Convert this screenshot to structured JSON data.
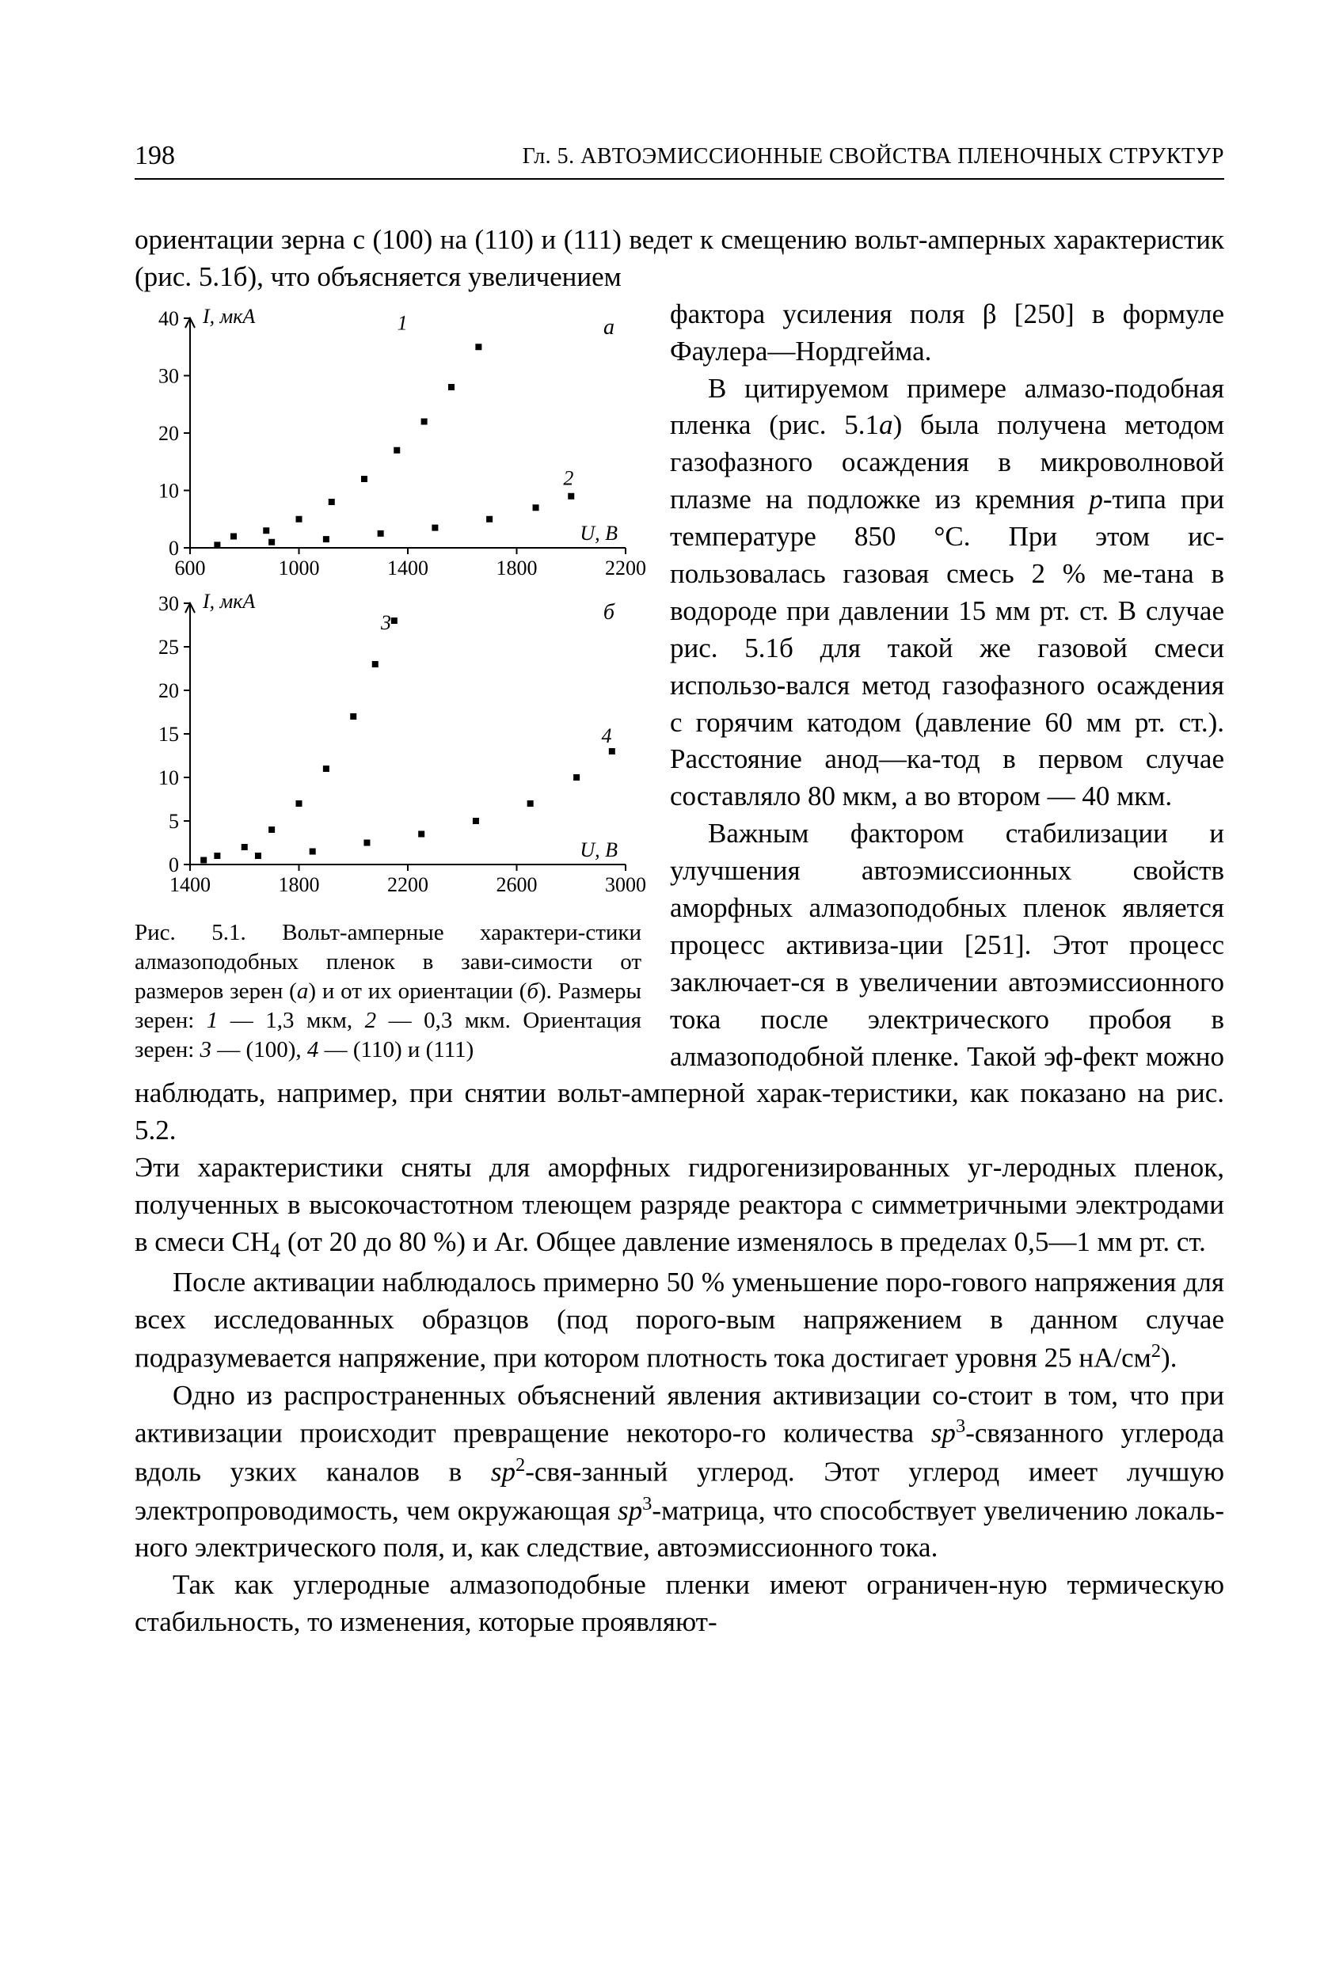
{
  "page_number": "198",
  "running_head": "Гл. 5. АВТОЭМИССИОННЫЕ СВОЙСТВА ПЛЕНОЧНЫХ СТРУКТУР",
  "top_para": "ориентации зерна с (100) на (110) и (111) ведет к смещению вольт-амперных характеристик (рис. 5.1б), что объясняется увеличением",
  "right_col": {
    "p1a": "фактора усиления поля β [250] в формуле Фаулера—Нордгейма.",
    "p1b_pre": "В цитируемом примере алмазо-подобная пленка (рис. 5.1",
    "p1b_post": ") была получена методом газофазного осаждения в микроволновой плазме на подложке из кремния ",
    "p1b_tail": "-типа при температуре 850 °C. При этом ис-пользовалась газовая смесь 2 % ме-тана в водороде при давлении 15 мм рт. ст. В случае рис. 5.1б для такой же газовой смеси использо-вался метод газофазного осаждения с горячим катодом (давление 60 мм рт. ст.). Расстояние анод—ка-тод в первом случае составляло 80 мкм, а во втором — 40 мкм.",
    "p2": "Важным фактором стабилизации и улучшения автоэмиссионных свойств аморфных алмазоподобных пленок является процесс активиза-ции [251]. Этот процесс заключает-ся в увеличении автоэмиссионного тока после электрического пробоя в алмазоподобной пленке. Такой эф-фект можно наблюдать, например, при снятии вольт-амперной харак-теристики, как показано на рис. 5.2."
  },
  "full_width": {
    "p3_pre": "Эти характеристики сняты для аморфных гидрогенизированных уг-леродных пленок, полученных в высокочастотном тлеющем разряде реактора с симметричными электродами в смеси CH",
    "p3_post": " (от 20 до 80 %) и Ar. Общее давление изменялось в пределах 0,5—1 мм рт. ст.",
    "p4_pre": "После активации наблюдалось примерно 50 % уменьшение поро-гового напряжения для всех исследованных образцов (под порого-вым напряжением в данном случае подразумевается напряжение, при котором плотность тока достигает уровня 25 нА/см",
    "p4_post": ").",
    "p5_a": "Одно из распространенных объяснений явления активизации со-стоит в том, что при активизации происходит превращение некоторо-го количества ",
    "p5_b": "-связанного углерода вдоль узких каналов в ",
    "p5_c": "-свя-занный углерод. Этот углерод имеет лучшую электропроводимость, чем окружающая ",
    "p5_d": "-матрица, что способствует увеличению локаль-ного электрического поля, и, как следствие, автоэмиссионного тока.",
    "p6": "Так как углеродные алмазоподобные пленки имеют ограничен-ную термическую стабильность, то изменения, которые проявляют-"
  },
  "figure": {
    "caption_pre": "Рис. 5.1. Вольт-амперные характери-стики алмазоподобных пленок в зави-симости от размеров зерен (",
    "caption_mid1": ") и от их ориентации (",
    "caption_mid2": "). Размеры зерен: ",
    "caption_s1": " — 1,3 мкм, ",
    "caption_s2": " — 0,3 мкм. Ориентация зерен: ",
    "caption_s3": " — (100), ",
    "caption_s4": " — (110) и (111)",
    "chart_a": {
      "type": "scatter",
      "panel_label": "а",
      "y_label": "I, мкА",
      "x_label": "U, В",
      "xlim": [
        600,
        2200
      ],
      "ylim": [
        0,
        40
      ],
      "xticks": [
        600,
        1000,
        1400,
        1800,
        2200
      ],
      "yticks": [
        0,
        10,
        20,
        30,
        40
      ],
      "series": [
        {
          "label": "1",
          "points": [
            [
              760,
              2
            ],
            [
              880,
              3
            ],
            [
              1000,
              5
            ],
            [
              1120,
              8
            ],
            [
              1240,
              12
            ],
            [
              1360,
              17
            ],
            [
              1460,
              22
            ],
            [
              1560,
              28
            ],
            [
              1660,
              35
            ]
          ]
        },
        {
          "label": "2",
          "points": [
            [
              700,
              0.5
            ],
            [
              900,
              1
            ],
            [
              1100,
              1.5
            ],
            [
              1300,
              2.5
            ],
            [
              1500,
              3.5
            ],
            [
              1700,
              5
            ],
            [
              1870,
              7
            ],
            [
              2000,
              9
            ]
          ]
        }
      ],
      "series_label_pos": {
        "1": [
          1380,
          38
        ],
        "2": [
          1990,
          11
        ]
      },
      "point_color": "#000000",
      "axis_color": "#000000",
      "bg": "#ffffff",
      "marker": "square",
      "marker_size": 8,
      "axis_width": 2,
      "label_fontsize": 26
    },
    "chart_b": {
      "type": "scatter",
      "panel_label": "б",
      "y_label": "I, мкА",
      "x_label": "U, В",
      "xlim": [
        1400,
        3000
      ],
      "ylim": [
        0,
        30
      ],
      "xticks": [
        1400,
        1800,
        2200,
        2600,
        3000
      ],
      "yticks": [
        0,
        5,
        10,
        15,
        20,
        25,
        30
      ],
      "series": [
        {
          "label": "3",
          "points": [
            [
              1500,
              1
            ],
            [
              1600,
              2
            ],
            [
              1700,
              4
            ],
            [
              1800,
              7
            ],
            [
              1900,
              11
            ],
            [
              2000,
              17
            ],
            [
              2080,
              23
            ],
            [
              2150,
              28
            ]
          ]
        },
        {
          "label": "4",
          "points": [
            [
              1450,
              0.5
            ],
            [
              1650,
              1
            ],
            [
              1850,
              1.5
            ],
            [
              2050,
              2.5
            ],
            [
              2250,
              3.5
            ],
            [
              2450,
              5
            ],
            [
              2650,
              7
            ],
            [
              2820,
              10
            ],
            [
              2950,
              13
            ]
          ]
        }
      ],
      "series_label_pos": {
        "3": [
          2120,
          27
        ],
        "4": [
          2930,
          14
        ]
      },
      "point_color": "#000000",
      "axis_color": "#000000",
      "bg": "#ffffff",
      "marker": "square",
      "marker_size": 8,
      "axis_width": 2,
      "label_fontsize": 26
    }
  }
}
